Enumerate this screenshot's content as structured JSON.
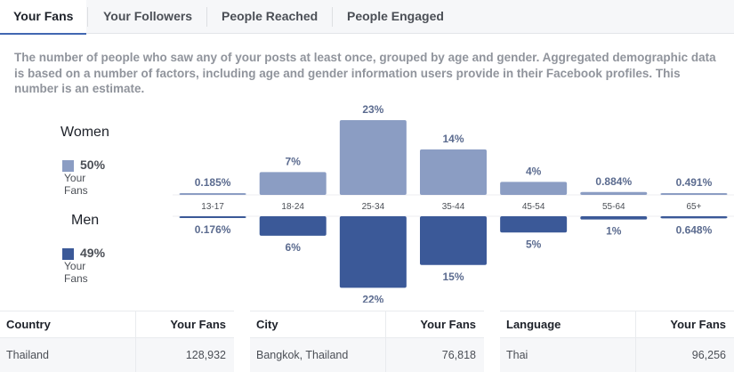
{
  "tabs": [
    "Your Fans",
    "Your Followers",
    "People Reached",
    "People Engaged"
  ],
  "description": "The number of people who saw any of your posts at least once, grouped by age and gender. Aggregated demographic data is based on a number of factors, including age and gender information users provide in their Facebook profiles. This number is an estimate.",
  "legend": {
    "women": {
      "title": "Women",
      "pct": "50%",
      "sub": "Your Fans",
      "color": "#8b9dc3"
    },
    "men": {
      "title": "Men",
      "pct": "49%",
      "sub": "Your Fans",
      "color": "#3b5998"
    }
  },
  "chart_data": {
    "type": "bar",
    "categories": [
      "13-17",
      "18-24",
      "25-34",
      "35-44",
      "45-54",
      "55-64",
      "65+"
    ],
    "series": [
      {
        "name": "Women",
        "values": [
          0.185,
          7,
          23,
          14,
          4,
          0.884,
          0.491
        ],
        "labels": [
          "0.185%",
          "7%",
          "23%",
          "14%",
          "4%",
          "0.884%",
          "0.491%"
        ],
        "color": "#8b9dc3"
      },
      {
        "name": "Men",
        "values": [
          0.176,
          6,
          22,
          15,
          5,
          1,
          0.648
        ],
        "labels": [
          "0.176%",
          "6%",
          "22%",
          "15%",
          "5%",
          "1%",
          "0.648%"
        ],
        "color": "#3b5998"
      }
    ],
    "ylim": [
      0,
      23
    ]
  },
  "tables": [
    {
      "header": "Country",
      "metric": "Your Fans",
      "name": "Thailand",
      "value": "128,932"
    },
    {
      "header": "City",
      "metric": "Your Fans",
      "name": "Bangkok, Thailand",
      "value": "76,818"
    },
    {
      "header": "Language",
      "metric": "Your Fans",
      "name": "Thai",
      "value": "96,256"
    }
  ]
}
